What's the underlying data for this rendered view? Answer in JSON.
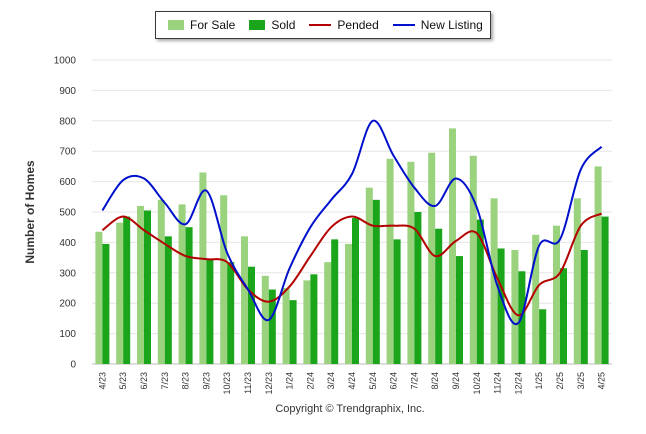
{
  "legend": {
    "for_sale": "For Sale",
    "sold": "Sold",
    "pended": "Pended",
    "new_listing": "New Listing"
  },
  "colors": {
    "for_sale": "#9ad27e",
    "sold": "#1aa51a",
    "pended": "#b40000",
    "new_listing": "#0010cc",
    "grid": "#e6e6e6"
  },
  "ylabel": "Number of Homes",
  "copyright": "Copyright © Trendgraphix, Inc.",
  "chart_data": {
    "type": "bar",
    "categories": [
      "4/23",
      "5/23",
      "6/23",
      "7/23",
      "8/23",
      "9/23",
      "10/23",
      "11/23",
      "12/23",
      "1/24",
      "2/24",
      "3/24",
      "4/24",
      "5/24",
      "6/24",
      "7/24",
      "8/24",
      "9/24",
      "10/24",
      "11/24",
      "12/24",
      "1/25",
      "2/25",
      "3/25",
      "4/25"
    ],
    "series": [
      {
        "name": "For Sale",
        "kind": "bar",
        "values": [
          435,
          465,
          520,
          540,
          525,
          630,
          555,
          420,
          290,
          250,
          275,
          335,
          395,
          580,
          675,
          665,
          695,
          775,
          685,
          545,
          375,
          425,
          455,
          545,
          650
        ]
      },
      {
        "name": "Sold",
        "kind": "bar",
        "values": [
          395,
          485,
          505,
          420,
          450,
          345,
          335,
          320,
          245,
          210,
          295,
          410,
          480,
          540,
          410,
          500,
          445,
          355,
          475,
          380,
          305,
          180,
          315,
          375,
          485
        ]
      },
      {
        "name": "Pended",
        "kind": "line",
        "values": [
          440,
          485,
          440,
          395,
          355,
          345,
          335,
          245,
          205,
          255,
          355,
          450,
          485,
          455,
          455,
          445,
          355,
          405,
          430,
          280,
          160,
          260,
          300,
          455,
          495
        ]
      },
      {
        "name": "New Listing",
        "kind": "line",
        "values": [
          505,
          605,
          610,
          530,
          460,
          570,
          365,
          245,
          145,
          315,
          450,
          540,
          625,
          800,
          685,
          580,
          520,
          610,
          515,
          255,
          135,
          390,
          410,
          640,
          715
        ]
      }
    ],
    "ylim": [
      0,
      1000
    ],
    "yticks": [
      0,
      100,
      200,
      300,
      400,
      500,
      600,
      700,
      800,
      900,
      1000
    ],
    "grid": true,
    "legend_position": "top-center",
    "xlabel": "",
    "ylabel": "Number of Homes"
  }
}
